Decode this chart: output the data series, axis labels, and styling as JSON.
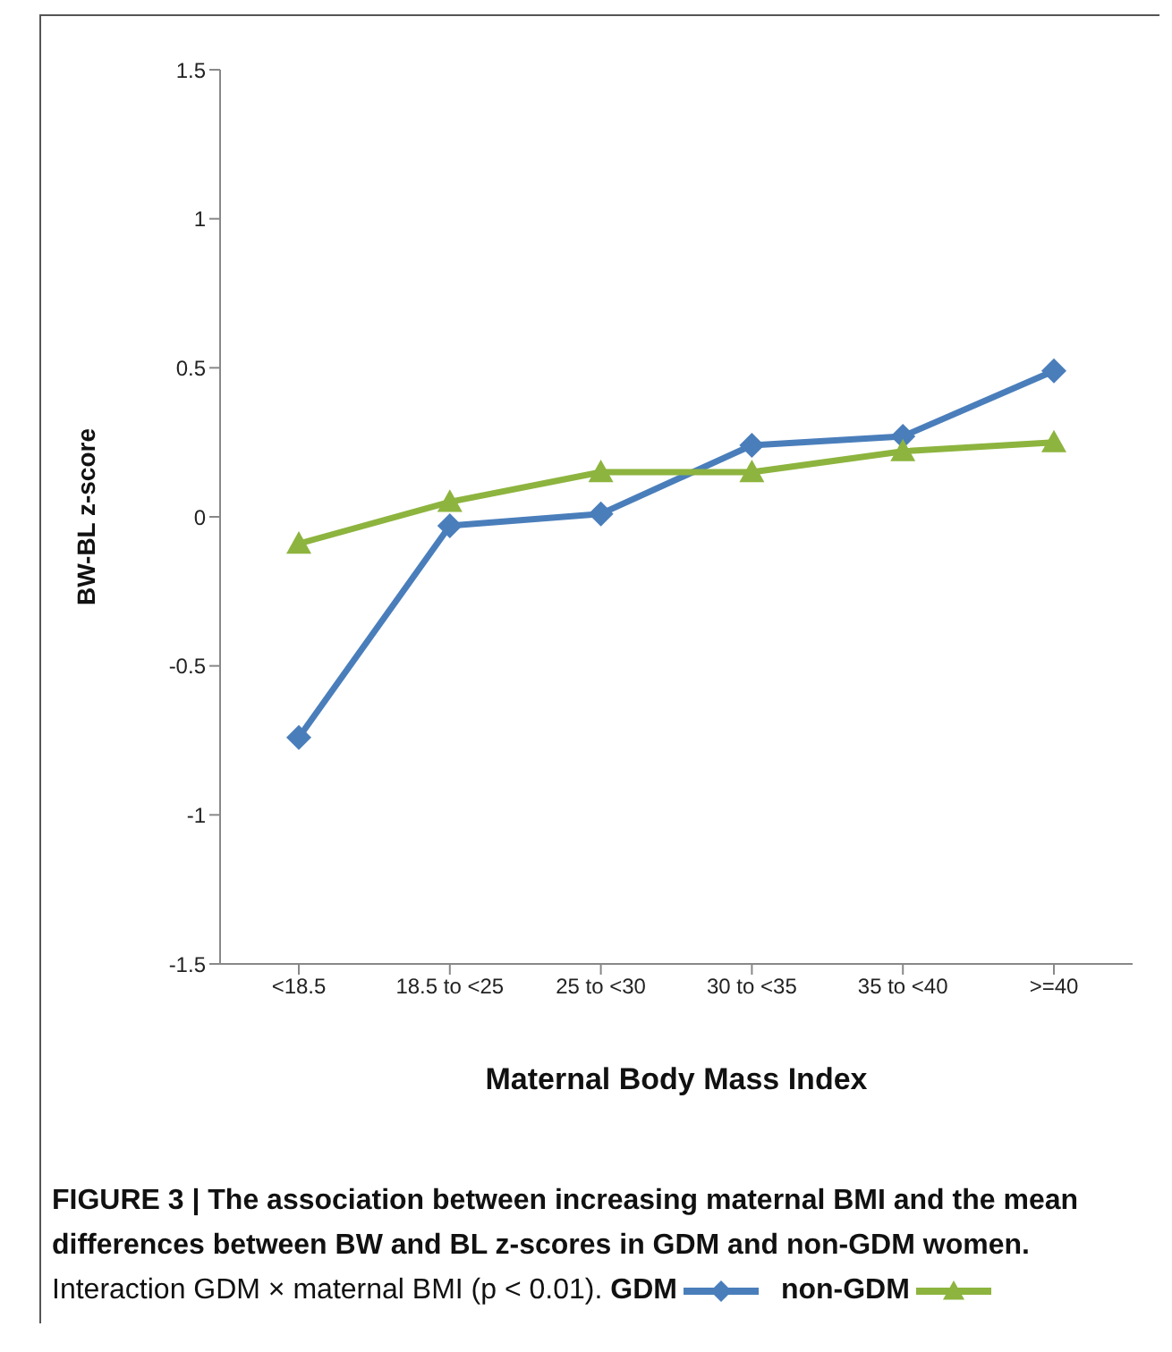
{
  "chart_data": {
    "type": "line",
    "title": "FIGURE 3 | The association between increasing maternal BMI and the mean differences between BW and BL z-scores in GDM and non-GDM women.",
    "annotations": [
      "Interaction GDM × maternal BMI (p < 0.01)."
    ],
    "xlabel": "Maternal Body Mass Index",
    "ylabel": "BW-BL  z-score",
    "categories": [
      "<18.5",
      "18.5 to <25",
      "25 to <30",
      "30 to <35",
      "35 to <40",
      ">=40"
    ],
    "series": [
      {
        "name": "GDM",
        "color": "#4a7ebb",
        "marker": "diamond",
        "values": [
          -0.74,
          -0.03,
          0.01,
          0.24,
          0.27,
          0.49
        ]
      },
      {
        "name": "non-GDM",
        "color": "#8db43e",
        "marker": "triangle",
        "values": [
          -0.09,
          0.05,
          0.15,
          0.15,
          0.22,
          0.25
        ]
      }
    ],
    "ylim": [
      -1.5,
      1.5
    ],
    "yticks": [
      -1.5,
      -1,
      -0.5,
      0,
      0.5,
      1,
      1.5
    ],
    "grid": false,
    "legend": "bottom",
    "line_style": "solid"
  }
}
